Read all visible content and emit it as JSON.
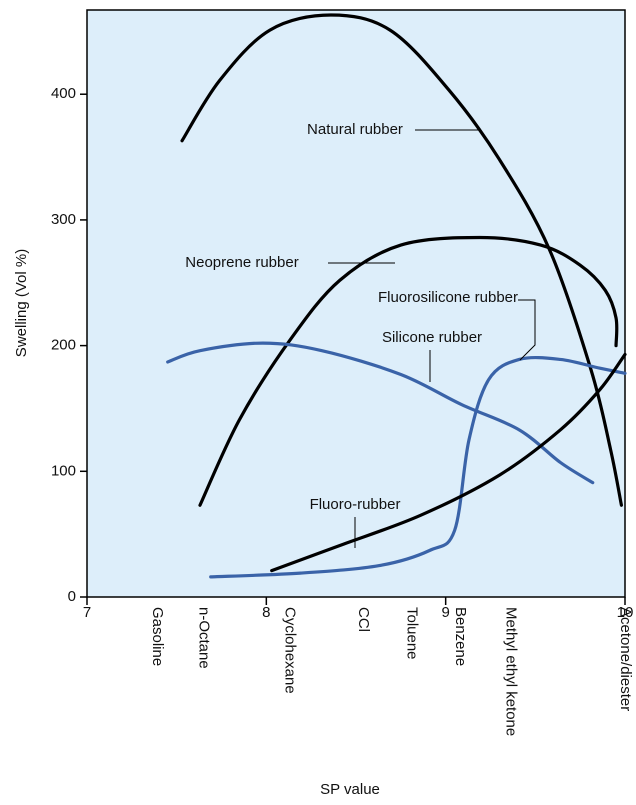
{
  "chart_data": {
    "type": "line",
    "xlabel": "SP value",
    "ylabel": "Swelling (Vol %)",
    "xlim": [
      7,
      10
    ],
    "ylim": [
      0,
      467
    ],
    "xticks": [
      7,
      8,
      9,
      10
    ],
    "yticks": [
      0,
      100,
      200,
      300,
      400
    ],
    "background": "#ddeefa",
    "series": [
      {
        "name": "Natural rubber",
        "color": "#000000",
        "x": [
          7.53,
          7.74,
          8.02,
          8.36,
          8.69,
          9.02,
          9.3,
          9.58,
          9.81,
          9.92,
          9.98
        ],
        "values": [
          363,
          411,
          451,
          463,
          451,
          403,
          348,
          276,
          181,
          117,
          73
        ]
      },
      {
        "name": "Neoprene rubber",
        "color": "#000000",
        "x": [
          7.63,
          7.85,
          8.13,
          8.41,
          8.75,
          9.19,
          9.53,
          9.75,
          9.89,
          9.95,
          9.95
        ],
        "values": [
          73,
          141,
          204,
          252,
          280,
          286,
          280,
          264,
          244,
          222,
          200
        ]
      },
      {
        "name": "Silicone rubber",
        "color": "#3a63a8",
        "x": [
          7.45,
          7.63,
          7.98,
          8.31,
          8.75,
          9.09,
          9.41,
          9.64,
          9.82
        ],
        "values": [
          187,
          196,
          202,
          196,
          177,
          153,
          133,
          107,
          91
        ]
      },
      {
        "name": "Fluorosilicone rubber",
        "color": "#3a63a8",
        "x": [
          7.69,
          8.19,
          8.63,
          8.91,
          9.05,
          9.13,
          9.24,
          9.41,
          9.64,
          9.86,
          10.0
        ],
        "values": [
          16,
          19,
          25,
          37,
          53,
          125,
          173,
          189,
          189,
          182,
          178
        ]
      },
      {
        "name": "Fluoro-rubber",
        "color": "#000000",
        "x": [
          8.03,
          8.41,
          8.86,
          9.3,
          9.64,
          9.86,
          10.0
        ],
        "values": [
          21,
          41,
          65,
          97,
          133,
          165,
          193
        ]
      }
    ],
    "solvents": [
      {
        "label": "Gasoline",
        "x": 7.39
      },
      {
        "label": "n-Octane",
        "x": 7.65
      },
      {
        "label": "Cyclohexane",
        "x": 8.13
      },
      {
        "label": "CCl",
        "x": 8.54
      },
      {
        "label": "Toluene",
        "x": 8.81
      },
      {
        "label": "Benzene",
        "x": 9.08
      },
      {
        "label": "Methyl ethyl ketone",
        "x": 9.36
      },
      {
        "label": "Acetone/diester",
        "x": 10.0
      }
    ]
  }
}
